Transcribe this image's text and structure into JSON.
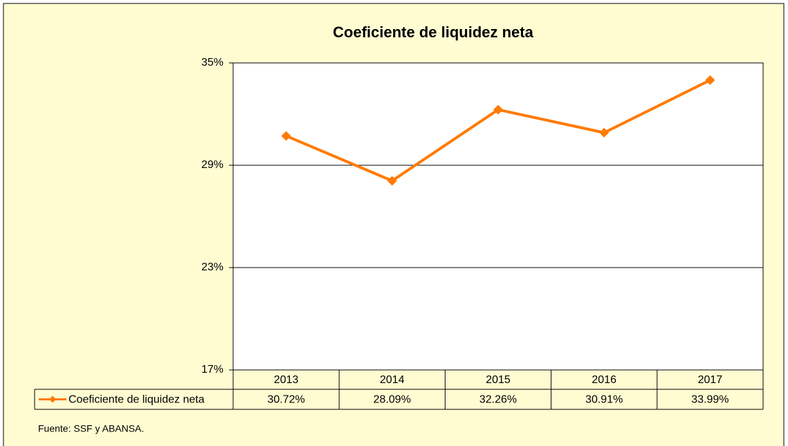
{
  "chart_data": {
    "type": "line",
    "title": "Coeficiente de liquidez neta",
    "categories": [
      "2013",
      "2014",
      "2015",
      "2016",
      "2017"
    ],
    "series": [
      {
        "name": "Coeficiente de liquidez neta",
        "color": "#ff7a00",
        "values": [
          30.72,
          28.09,
          32.26,
          30.91,
          33.99
        ],
        "value_labels": [
          "30.72%",
          "28.09%",
          "32.26%",
          "30.91%",
          "33.99%"
        ]
      }
    ],
    "ylim": [
      17,
      35
    ],
    "yticks": [
      {
        "value": 17,
        "label": "17%"
      },
      {
        "value": 23,
        "label": "23%"
      },
      {
        "value": 29,
        "label": "29%"
      },
      {
        "value": 35,
        "label": "35%"
      }
    ],
    "grid": true,
    "source": "Fuente: SSF y ABANSA."
  }
}
